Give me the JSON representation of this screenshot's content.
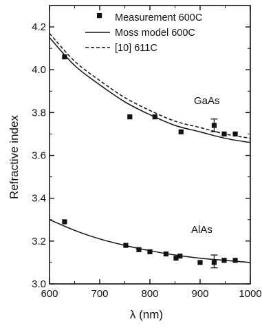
{
  "chart_data": {
    "type": "scatter",
    "xlabel": "λ (nm)",
    "ylabel": "Refractive index",
    "xlim": [
      600,
      1000
    ],
    "ylim": [
      3.0,
      4.3
    ],
    "xticks": [
      "600",
      "700",
      "800",
      "900",
      "1000"
    ],
    "yticks": [
      "3.0",
      "3.2",
      "3.4",
      "3.6",
      "3.8",
      "4.0",
      "4.2"
    ],
    "legend_position": "top-right",
    "legend": [
      "Measurement 600C",
      "Moss model 600C",
      "[10] 611C"
    ],
    "annotations": [
      "GaAs",
      "AlAs"
    ],
    "series": [
      {
        "name": "Measurement 600C",
        "style": "square-marker",
        "material": "GaAs",
        "x": [
          630,
          760,
          810,
          862,
          928,
          948,
          970
        ],
        "y": [
          4.06,
          3.78,
          3.78,
          3.71,
          3.74,
          3.7,
          3.7
        ],
        "error_bar_at": [
          928,
          3.74,
          0.03
        ]
      },
      {
        "name": "Measurement 600C",
        "style": "square-marker",
        "material": "AlAs",
        "x": [
          630,
          752,
          778,
          800,
          832,
          852,
          860,
          900,
          928,
          948,
          970
        ],
        "y": [
          3.29,
          3.18,
          3.16,
          3.15,
          3.14,
          3.12,
          3.13,
          3.1,
          3.1,
          3.11,
          3.11
        ],
        "error_bar_at": [
          928,
          3.105,
          0.03
        ]
      },
      {
        "name": "Moss model 600C",
        "style": "solid-line",
        "material": "GaAs",
        "x": [
          600,
          650,
          700,
          750,
          800,
          850,
          900,
          950,
          1000
        ],
        "y": [
          4.15,
          4.02,
          3.93,
          3.85,
          3.79,
          3.74,
          3.71,
          3.68,
          3.66
        ]
      },
      {
        "name": "Moss model 600C",
        "style": "solid-line",
        "material": "AlAs",
        "x": [
          600,
          650,
          700,
          750,
          800,
          850,
          900,
          950,
          1000
        ],
        "y": [
          3.3,
          3.25,
          3.21,
          3.18,
          3.155,
          3.135,
          3.12,
          3.11,
          3.1
        ]
      },
      {
        "name": "[10] 611C",
        "style": "dashed-line",
        "material": "GaAs",
        "x": [
          600,
          650,
          700,
          750,
          800,
          850,
          900,
          950,
          1000
        ],
        "y": [
          4.17,
          4.04,
          3.95,
          3.87,
          3.81,
          3.76,
          3.73,
          3.7,
          3.68
        ]
      }
    ]
  }
}
